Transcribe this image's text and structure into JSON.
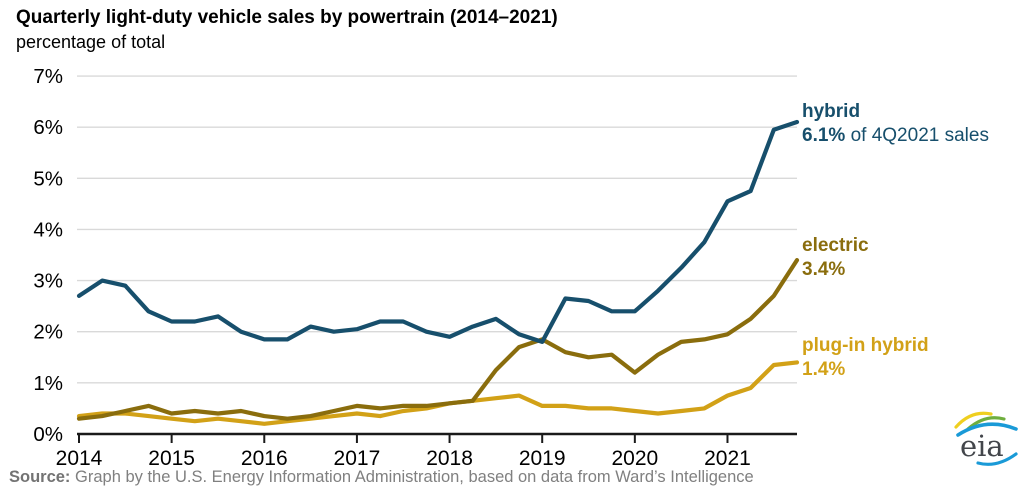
{
  "header": {
    "title": "Quarterly light-duty vehicle sales by powertrain (2014–2021)",
    "subtitle": "percentage of total"
  },
  "footer": {
    "source_label": "Source:",
    "source_text": " Graph by the U.S. Energy Information Administration, based on data from Ward’s Intelligence"
  },
  "logo": {
    "text": "eia"
  },
  "colors": {
    "hybrid": "#174f6c",
    "electric": "#8a6d0d",
    "plug_in_hybrid": "#d2a117",
    "gridline": "#d9d9d9",
    "axis": "#1a1a1a"
  },
  "chart_data": {
    "type": "line",
    "title": "Quarterly light-duty vehicle sales by powertrain (2014–2021)",
    "subtitle": "percentage of total",
    "xlabel": "",
    "ylabel": "percentage of total",
    "ylim": [
      0,
      7
    ],
    "grid": "horizontal",
    "legend_position": "right-edge-annotations",
    "y_tick_labels": [
      "0%",
      "1%",
      "2%",
      "3%",
      "4%",
      "5%",
      "6%",
      "7%"
    ],
    "x_tick_labels": [
      "2014",
      "2015",
      "2016",
      "2017",
      "2018",
      "2019",
      "2020",
      "2021"
    ],
    "categories": [
      "2014Q1",
      "2014Q2",
      "2014Q3",
      "2014Q4",
      "2015Q1",
      "2015Q2",
      "2015Q3",
      "2015Q4",
      "2016Q1",
      "2016Q2",
      "2016Q3",
      "2016Q4",
      "2017Q1",
      "2017Q2",
      "2017Q3",
      "2017Q4",
      "2018Q1",
      "2018Q2",
      "2018Q3",
      "2018Q4",
      "2019Q1",
      "2019Q2",
      "2019Q3",
      "2019Q4",
      "2020Q1",
      "2020Q2",
      "2020Q3",
      "2020Q4",
      "2021Q1",
      "2021Q2",
      "2021Q3",
      "2021Q4"
    ],
    "series": [
      {
        "name": "hybrid",
        "color": "#174f6c",
        "values": [
          2.7,
          3.0,
          2.9,
          2.4,
          2.2,
          2.2,
          2.3,
          2.0,
          1.85,
          1.85,
          2.1,
          2.0,
          2.05,
          2.2,
          2.2,
          2.0,
          1.9,
          2.1,
          2.25,
          1.95,
          1.8,
          2.65,
          2.6,
          2.4,
          2.4,
          2.8,
          3.25,
          3.75,
          4.55,
          4.75,
          5.95,
          6.1
        ],
        "label_name": "hybrid",
        "label_value": "6.1%",
        "label_suffix": " of 4Q2021 sales"
      },
      {
        "name": "electric",
        "color": "#8a6d0d",
        "values": [
          0.3,
          0.35,
          0.45,
          0.55,
          0.4,
          0.45,
          0.4,
          0.45,
          0.35,
          0.3,
          0.35,
          0.45,
          0.55,
          0.5,
          0.55,
          0.55,
          0.6,
          0.65,
          1.25,
          1.7,
          1.85,
          1.6,
          1.5,
          1.55,
          1.2,
          1.55,
          1.8,
          1.85,
          1.95,
          2.25,
          2.7,
          3.4
        ],
        "label_name": "electric",
        "label_value": "3.4%",
        "label_suffix": ""
      },
      {
        "name": "plug-in hybrid",
        "color": "#d2a117",
        "values": [
          0.35,
          0.4,
          0.4,
          0.35,
          0.3,
          0.25,
          0.3,
          0.25,
          0.2,
          0.25,
          0.3,
          0.35,
          0.4,
          0.35,
          0.45,
          0.5,
          0.6,
          0.65,
          0.7,
          0.75,
          0.55,
          0.55,
          0.5,
          0.5,
          0.45,
          0.4,
          0.45,
          0.5,
          0.75,
          0.9,
          1.35,
          1.4
        ],
        "label_name": "plug-in hybrid",
        "label_value": "1.4%",
        "label_suffix": ""
      }
    ]
  }
}
